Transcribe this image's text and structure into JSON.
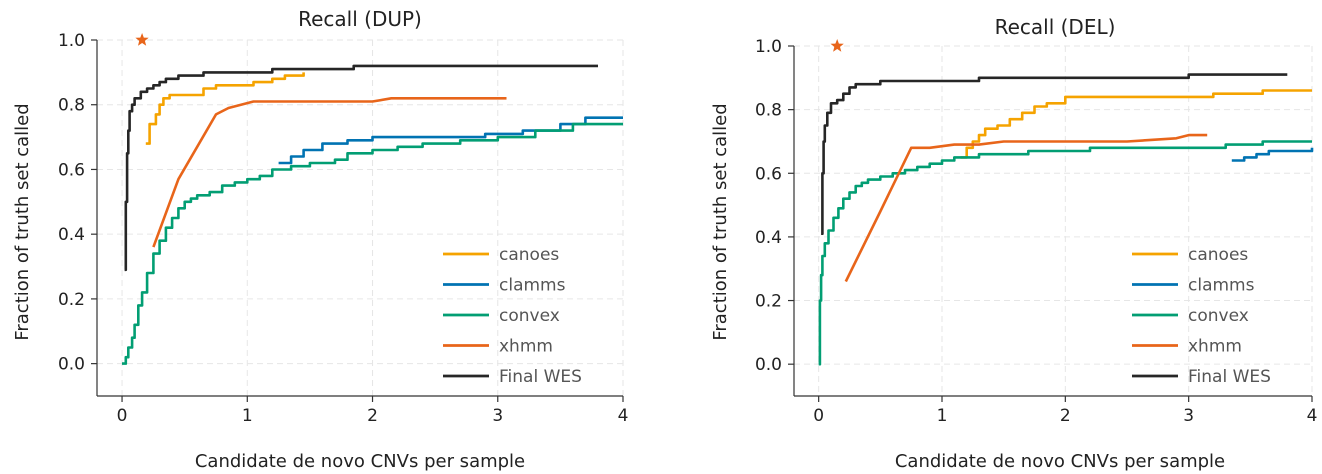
{
  "chart_data": [
    {
      "type": "line",
      "title": "Recall (DUP)",
      "xlabel": "Candidate de novo CNVs per sample",
      "ylabel": "Fraction of truth set called",
      "xlim": [
        -0.2,
        4.0
      ],
      "ylim": [
        -0.1,
        1.0
      ],
      "x_ticks": [
        0,
        1,
        2,
        3,
        4
      ],
      "x_tick_labels": [
        "0",
        "1",
        "2",
        "3",
        "4"
      ],
      "y_ticks": [
        0.0,
        0.2,
        0.4,
        0.6,
        0.8,
        1.0
      ],
      "y_tick_labels": [
        "0.0",
        "0.2",
        "0.4",
        "0.6",
        "0.8",
        "1.0"
      ],
      "grid": true,
      "legend_position": "bottom-right",
      "series": [
        {
          "name": "canoes",
          "color": "#f5a300",
          "x": [
            0.19,
            0.22,
            0.27,
            0.3,
            0.33,
            0.38,
            0.45,
            0.55,
            0.65,
            0.75,
            0.9,
            1.05,
            1.2,
            1.3,
            1.45
          ],
          "y": [
            0.68,
            0.74,
            0.77,
            0.8,
            0.82,
            0.83,
            0.83,
            0.83,
            0.85,
            0.86,
            0.86,
            0.87,
            0.88,
            0.89,
            0.9
          ],
          "step": true
        },
        {
          "name": "clamms",
          "color": "#0173b2",
          "x": [
            1.25,
            1.35,
            1.45,
            1.6,
            1.8,
            2.0,
            2.3,
            2.6,
            2.9,
            3.2,
            3.5,
            3.7,
            4.0
          ],
          "y": [
            0.62,
            0.64,
            0.66,
            0.68,
            0.69,
            0.7,
            0.7,
            0.7,
            0.71,
            0.72,
            0.74,
            0.76,
            0.76
          ],
          "step": true
        },
        {
          "name": "convex",
          "color": "#029e73",
          "x": [
            0.0,
            0.03,
            0.05,
            0.08,
            0.1,
            0.13,
            0.16,
            0.2,
            0.25,
            0.3,
            0.35,
            0.4,
            0.45,
            0.5,
            0.55,
            0.6,
            0.7,
            0.8,
            0.9,
            1.0,
            1.1,
            1.2,
            1.35,
            1.5,
            1.7,
            1.8,
            2.0,
            2.2,
            2.4,
            2.7,
            3.0,
            3.3,
            3.6,
            4.0
          ],
          "y": [
            0.0,
            0.02,
            0.05,
            0.08,
            0.12,
            0.18,
            0.22,
            0.28,
            0.34,
            0.38,
            0.42,
            0.45,
            0.48,
            0.5,
            0.51,
            0.52,
            0.53,
            0.55,
            0.56,
            0.57,
            0.58,
            0.6,
            0.61,
            0.62,
            0.63,
            0.65,
            0.66,
            0.67,
            0.68,
            0.69,
            0.7,
            0.72,
            0.74,
            0.74
          ],
          "step": true
        },
        {
          "name": "xhmm",
          "color": "#e8651a",
          "x": [
            0.25,
            0.45,
            0.75,
            0.85,
            1.05,
            1.4,
            1.7,
            2.0,
            2.15,
            2.5,
            3.07
          ],
          "y": [
            0.36,
            0.57,
            0.77,
            0.79,
            0.81,
            0.81,
            0.81,
            0.81,
            0.82,
            0.82,
            0.82
          ],
          "step": false
        },
        {
          "name": "Final WES",
          "color": "#262626",
          "x": [
            0.02,
            0.03,
            0.04,
            0.05,
            0.06,
            0.08,
            0.1,
            0.15,
            0.2,
            0.25,
            0.3,
            0.35,
            0.45,
            0.55,
            0.65,
            0.8,
            1.0,
            1.2,
            1.3,
            1.5,
            1.7,
            1.85,
            2.2,
            2.6,
            3.0,
            3.4,
            3.8
          ],
          "y": [
            0.29,
            0.5,
            0.65,
            0.72,
            0.78,
            0.8,
            0.82,
            0.84,
            0.85,
            0.86,
            0.87,
            0.88,
            0.89,
            0.89,
            0.9,
            0.9,
            0.9,
            0.91,
            0.91,
            0.91,
            0.91,
            0.92,
            0.92,
            0.92,
            0.92,
            0.92,
            0.92
          ],
          "step": true
        }
      ],
      "markers": [
        {
          "type": "star",
          "x": 0.16,
          "y": 1.0,
          "color": "#e8651a"
        }
      ]
    },
    {
      "type": "line",
      "title": "Recall (DEL)",
      "xlabel": "Candidate de novo CNVs per sample",
      "ylabel": "Fraction of truth set called",
      "xlim": [
        -0.2,
        4.0
      ],
      "ylim": [
        -0.1,
        1.0
      ],
      "x_ticks": [
        0,
        1,
        2,
        3,
        4
      ],
      "x_tick_labels": [
        "0",
        "1",
        "2",
        "3",
        "4"
      ],
      "y_ticks": [
        0.0,
        0.2,
        0.4,
        0.6,
        0.8,
        1.0
      ],
      "y_tick_labels": [
        "0.0",
        "0.2",
        "0.4",
        "0.6",
        "0.8",
        "1.0"
      ],
      "grid": true,
      "legend_position": "bottom-right",
      "series": [
        {
          "name": "canoes",
          "color": "#f5a300",
          "x": [
            1.15,
            1.2,
            1.25,
            1.3,
            1.35,
            1.45,
            1.55,
            1.65,
            1.75,
            1.85,
            2.0,
            2.2,
            2.5,
            2.8,
            3.2,
            3.6,
            4.0
          ],
          "y": [
            0.65,
            0.68,
            0.7,
            0.72,
            0.74,
            0.75,
            0.77,
            0.79,
            0.81,
            0.82,
            0.84,
            0.84,
            0.84,
            0.84,
            0.85,
            0.86,
            0.86
          ],
          "step": true
        },
        {
          "name": "clamms",
          "color": "#0173b2",
          "x": [
            3.35,
            3.45,
            3.55,
            3.65,
            3.75,
            3.9,
            4.0
          ],
          "y": [
            0.64,
            0.65,
            0.66,
            0.67,
            0.67,
            0.67,
            0.68
          ],
          "step": true
        },
        {
          "name": "convex",
          "color": "#029e73",
          "x": [
            0.0,
            0.01,
            0.02,
            0.03,
            0.05,
            0.08,
            0.12,
            0.16,
            0.2,
            0.25,
            0.3,
            0.35,
            0.4,
            0.5,
            0.6,
            0.7,
            0.8,
            0.9,
            1.0,
            1.1,
            1.3,
            1.5,
            1.7,
            1.9,
            2.2,
            2.6,
            3.0,
            3.3,
            3.6,
            4.0
          ],
          "y": [
            0.0,
            0.2,
            0.28,
            0.34,
            0.38,
            0.42,
            0.46,
            0.49,
            0.52,
            0.54,
            0.56,
            0.57,
            0.58,
            0.59,
            0.6,
            0.61,
            0.62,
            0.63,
            0.64,
            0.65,
            0.66,
            0.66,
            0.67,
            0.67,
            0.68,
            0.68,
            0.68,
            0.69,
            0.7,
            0.7
          ],
          "step": true
        },
        {
          "name": "xhmm",
          "color": "#e8651a",
          "x": [
            0.22,
            0.5,
            0.75,
            0.9,
            1.1,
            1.3,
            1.5,
            1.7,
            2.0,
            2.5,
            2.9,
            3.0,
            3.15
          ],
          "y": [
            0.26,
            0.48,
            0.68,
            0.68,
            0.69,
            0.69,
            0.7,
            0.7,
            0.7,
            0.7,
            0.71,
            0.72,
            0.72
          ],
          "step": false
        },
        {
          "name": "Final WES",
          "color": "#262626",
          "x": [
            0.02,
            0.03,
            0.04,
            0.05,
            0.07,
            0.1,
            0.15,
            0.2,
            0.25,
            0.3,
            0.4,
            0.5,
            0.7,
            1.0,
            1.3,
            1.6,
            2.0,
            2.5,
            2.9,
            3.0,
            3.2,
            3.4,
            3.8
          ],
          "y": [
            0.41,
            0.6,
            0.7,
            0.75,
            0.79,
            0.82,
            0.83,
            0.85,
            0.87,
            0.88,
            0.88,
            0.89,
            0.89,
            0.89,
            0.9,
            0.9,
            0.9,
            0.9,
            0.9,
            0.91,
            0.91,
            0.91,
            0.91
          ],
          "step": true
        }
      ],
      "markers": [
        {
          "type": "star",
          "x": 0.15,
          "y": 1.0,
          "color": "#e8651a"
        }
      ]
    }
  ]
}
